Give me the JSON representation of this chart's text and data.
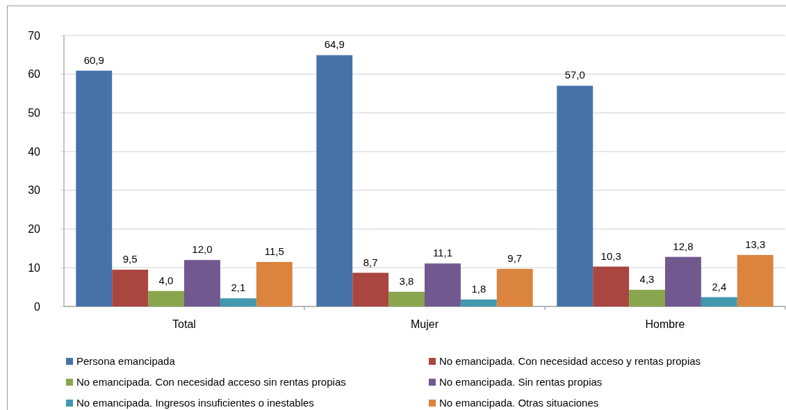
{
  "chart_data": {
    "type": "bar",
    "categories": [
      "Total",
      "Mujer",
      "Hombre"
    ],
    "series": [
      {
        "name": "Persona emancipada",
        "color": "#4672a8",
        "values": [
          60.9,
          64.9,
          57.0
        ],
        "value_labels": [
          "60,9",
          "64,9",
          "57,0"
        ]
      },
      {
        "name": "No emancipada. Con necesidad acceso y rentas propias",
        "color": "#a9463f",
        "values": [
          9.5,
          8.7,
          10.3
        ],
        "value_labels": [
          "9,5",
          "8,7",
          "10,3"
        ]
      },
      {
        "name": "No emancipada. Con necesidad acceso sin rentas propias",
        "color": "#89a54e",
        "values": [
          4.0,
          3.8,
          4.3
        ],
        "value_labels": [
          "4,0",
          "3,8",
          "4,3"
        ]
      },
      {
        "name": "No emancipada. Sin rentas propias",
        "color": "#71588f",
        "values": [
          12.0,
          11.1,
          12.8
        ],
        "value_labels": [
          "12,0",
          "11,1",
          "12,8"
        ]
      },
      {
        "name": "No emancipada. Ingresos insuficientes o inestables",
        "color": "#4198af",
        "values": [
          2.1,
          1.8,
          2.4
        ],
        "value_labels": [
          "2,1",
          "1,8",
          "2,4"
        ]
      },
      {
        "name": "No emancipada. Otras situaciones",
        "color": "#db843d",
        "values": [
          11.5,
          9.7,
          13.3
        ],
        "value_labels": [
          "11,5",
          "9,7",
          "13,3"
        ]
      }
    ],
    "ylim": [
      0,
      70
    ],
    "yticks": [
      0,
      10,
      20,
      30,
      40,
      50,
      60,
      70
    ],
    "grid": "y",
    "legend": "bottom"
  }
}
